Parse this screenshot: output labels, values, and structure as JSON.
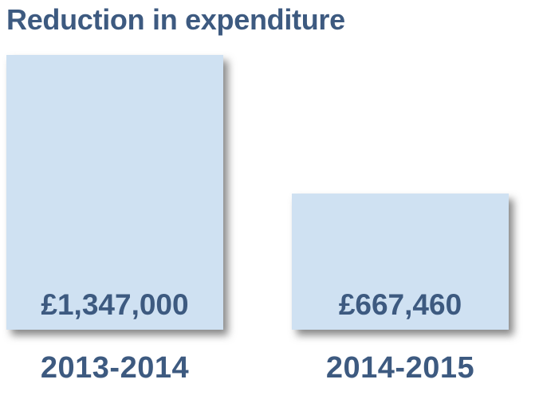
{
  "chart_data": {
    "type": "bar",
    "title": "Reduction in expenditure",
    "categories": [
      "2013-2014",
      "2014-2015"
    ],
    "values": [
      1347000,
      667460
    ],
    "value_labels": [
      "£1,347,000",
      "£667,460"
    ],
    "xlabel": "",
    "ylabel": "",
    "ylim": [
      0,
      1347000
    ],
    "grid": false,
    "legend": "none"
  },
  "colors": {
    "bar_fill": "#cfe1f2",
    "text": "#3d5a80",
    "background": "#ffffff"
  }
}
